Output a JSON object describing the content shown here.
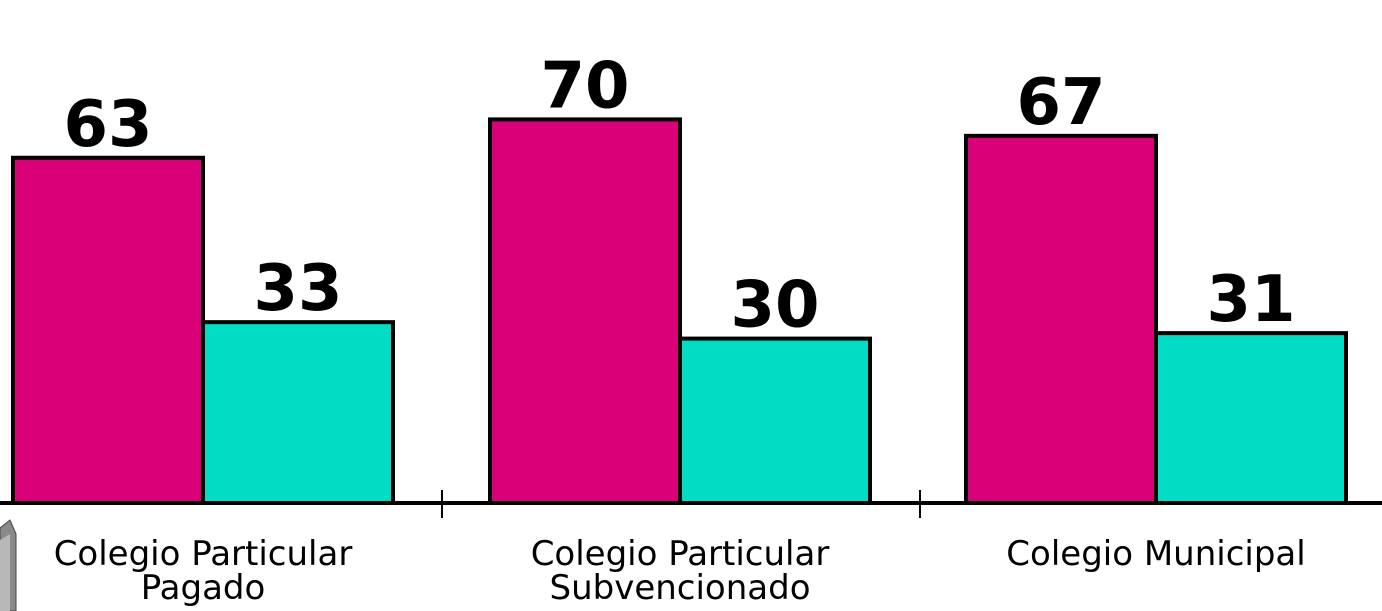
{
  "chart_data": {
    "type": "bar",
    "categories": [
      [
        "Colegio Particular",
        "Pagado"
      ],
      [
        "Colegio Particular",
        "Subvencionado"
      ],
      [
        "Colegio Municipal"
      ]
    ],
    "series": [
      {
        "values": [
          63,
          70,
          67
        ],
        "color": "#d9007a"
      },
      {
        "values": [
          33,
          30,
          31
        ],
        "color": "#00ddc4"
      }
    ],
    "data_labels": true,
    "grid": false,
    "legend": "none"
  }
}
